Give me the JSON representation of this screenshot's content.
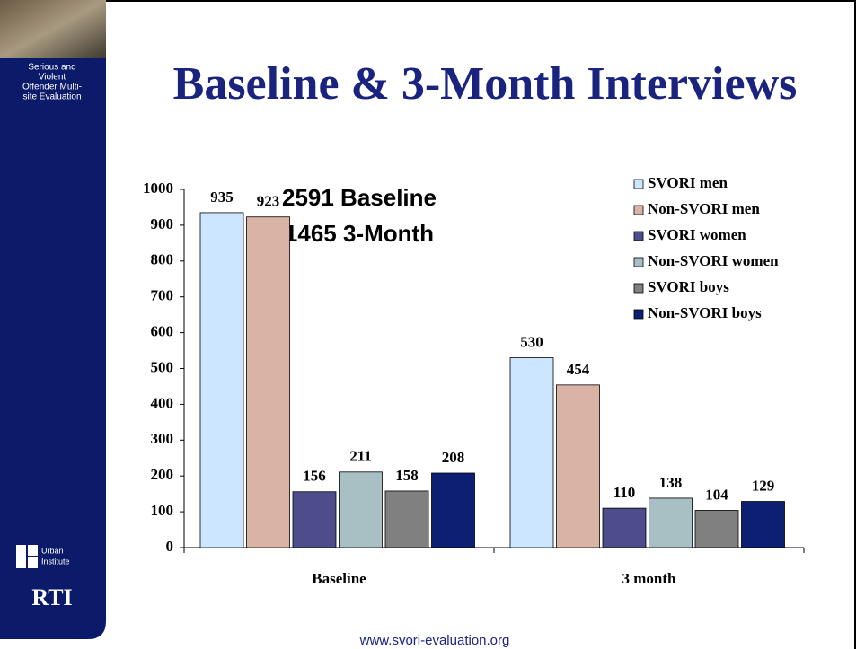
{
  "sidebar": {
    "caption": [
      "Serious and",
      "Violent",
      "Offender Multi-",
      "site Evaluation"
    ],
    "urban": [
      "Urban",
      "Institute"
    ],
    "rti": "RTI"
  },
  "footer": "www.svori-evaluation.org",
  "chart_data": {
    "type": "bar",
    "title": "Baseline & 3-Month Interviews",
    "annotations": [
      "2591 Baseline",
      "1465 3-Month"
    ],
    "categories": [
      "Baseline",
      "3 month"
    ],
    "series": [
      {
        "name": "SVORI men",
        "color": "#cce6ff",
        "values": [
          935,
          530
        ]
      },
      {
        "name": "Non-SVORI men",
        "color": "#d9b4a5",
        "values": [
          923,
          454
        ]
      },
      {
        "name": "SVORI women",
        "color": "#4d4d8c",
        "values": [
          156,
          110
        ]
      },
      {
        "name": "Non-SVORI women",
        "color": "#a8c0c4",
        "values": [
          211,
          138
        ]
      },
      {
        "name": "SVORI boys",
        "color": "#808080",
        "values": [
          158,
          104
        ]
      },
      {
        "name": "Non-SVORI boys",
        "color": "#0d1f72",
        "values": [
          208,
          129
        ]
      }
    ],
    "ylim": [
      0,
      1000
    ],
    "yticks": [
      0,
      100,
      200,
      300,
      400,
      500,
      600,
      700,
      800,
      900,
      1000
    ]
  }
}
